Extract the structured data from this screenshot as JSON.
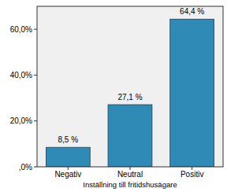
{
  "chart_data": {
    "type": "bar",
    "x_label": "Inställning till fritidshusägare",
    "categories": [
      "Negativ",
      "Neutral",
      "Positiv"
    ],
    "values": [
      8.5,
      27.1,
      64.4
    ],
    "value_labels": [
      "8,5 %",
      "27,1 %",
      "64,4 %"
    ],
    "color": "#2f8ab5",
    "ylim": [
      0,
      70
    ],
    "yticks": [
      {
        "value": 0,
        "label": ",0%"
      },
      {
        "value": 20,
        "label": "20,0%"
      },
      {
        "value": 40,
        "label": "40,0%"
      },
      {
        "value": 60,
        "label": "60,0%"
      }
    ],
    "grid": false,
    "data_labels": true
  }
}
